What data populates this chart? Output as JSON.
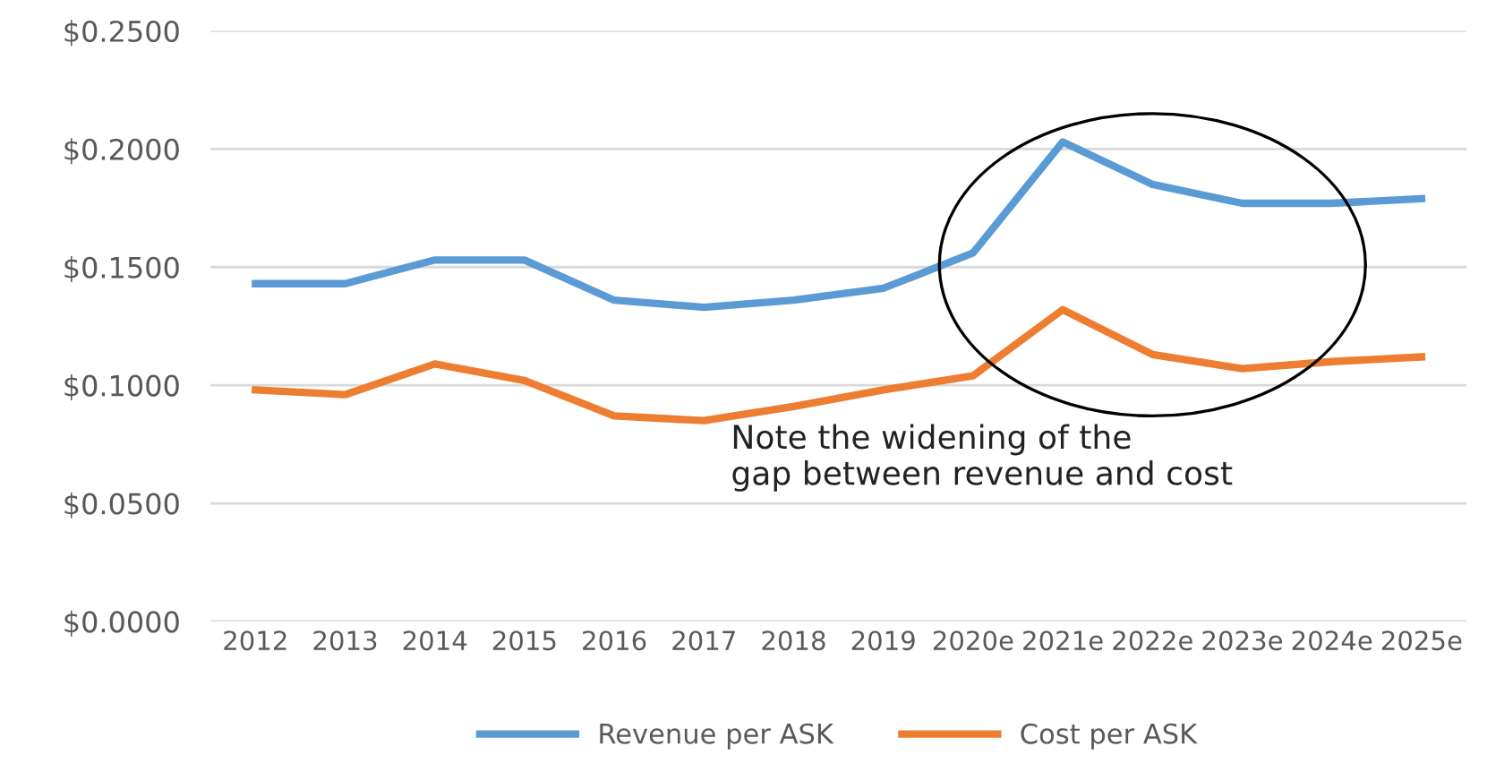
{
  "chart_data": {
    "type": "line",
    "categories": [
      "2012",
      "2013",
      "2014",
      "2015",
      "2016",
      "2017",
      "2018",
      "2019",
      "2020e",
      "2021e",
      "2022e",
      "2023e",
      "2024e",
      "2025e"
    ],
    "series": [
      {
        "name": "Revenue per ASK",
        "color": "#5b9bd5",
        "values": [
          0.143,
          0.143,
          0.153,
          0.153,
          0.136,
          0.133,
          0.136,
          0.141,
          0.156,
          0.203,
          0.185,
          0.177,
          0.177,
          0.179
        ]
      },
      {
        "name": "Cost per ASK",
        "color": "#ed7d31",
        "values": [
          0.098,
          0.096,
          0.109,
          0.102,
          0.087,
          0.085,
          0.091,
          0.098,
          0.104,
          0.132,
          0.113,
          0.107,
          0.11,
          0.112
        ]
      }
    ],
    "ylim": [
      0,
      0.25
    ],
    "yticks": [
      {
        "value": 0,
        "label": "$0.0000"
      },
      {
        "value": 0.05,
        "label": "$0.0500"
      },
      {
        "value": 0.1,
        "label": "$0.1000"
      },
      {
        "value": 0.15,
        "label": "$0.1500"
      },
      {
        "value": 0.2,
        "label": "$0.2000"
      },
      {
        "value": 0.25,
        "label": "$0.2500"
      }
    ],
    "grid": "y",
    "legend": "bottom",
    "marker": "none",
    "line_style": "solid",
    "annotations": [
      "Note the widening of the\ngap between revenue and cost"
    ]
  }
}
